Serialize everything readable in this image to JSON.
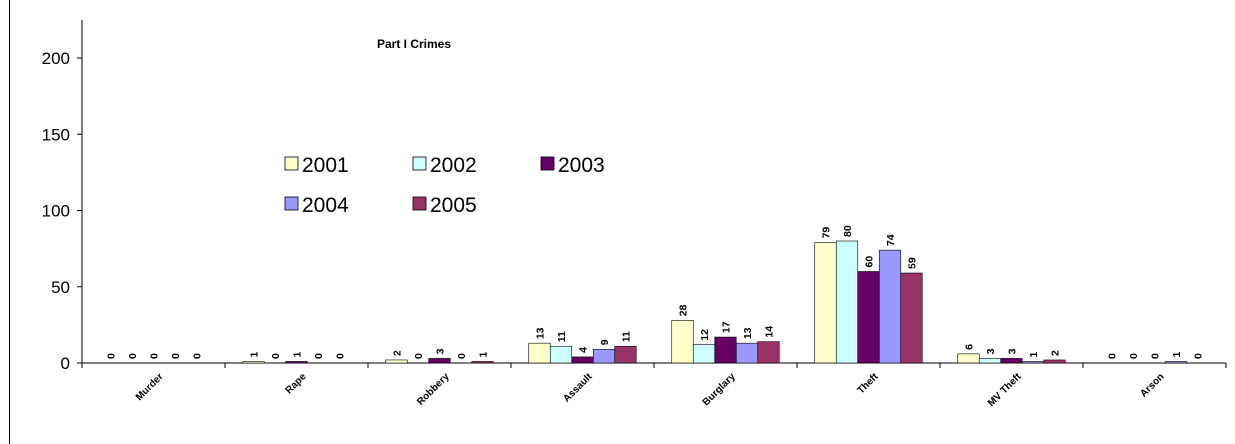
{
  "chart_data": {
    "type": "bar",
    "title": "Part I Crimes",
    "categories": [
      "Murder",
      "Rape",
      "Robbery",
      "Assault",
      "Burglary",
      "Theft",
      "MV Theft",
      "Arson"
    ],
    "series": [
      {
        "name": "2001",
        "color": "#ffffcc",
        "values": [
          0,
          1,
          2,
          13,
          28,
          79,
          6,
          0
        ]
      },
      {
        "name": "2002",
        "color": "#ccffff",
        "values": [
          0,
          0,
          0,
          11,
          12,
          80,
          3,
          0
        ]
      },
      {
        "name": "2003",
        "color": "#660066",
        "values": [
          0,
          1,
          3,
          4,
          17,
          60,
          3,
          0
        ]
      },
      {
        "name": "2004",
        "color": "#9999ff",
        "values": [
          0,
          0,
          0,
          9,
          13,
          74,
          1,
          1
        ]
      },
      {
        "name": "2005",
        "color": "#993366",
        "values": [
          0,
          0,
          1,
          11,
          14,
          59,
          2,
          0
        ]
      }
    ],
    "ylim": [
      0,
      200
    ],
    "yticks": [
      0,
      50,
      100,
      150,
      200
    ],
    "xlabel": "",
    "ylabel": "",
    "grid": false,
    "legend_position": "upper-left inside plot",
    "data_labels": true
  }
}
